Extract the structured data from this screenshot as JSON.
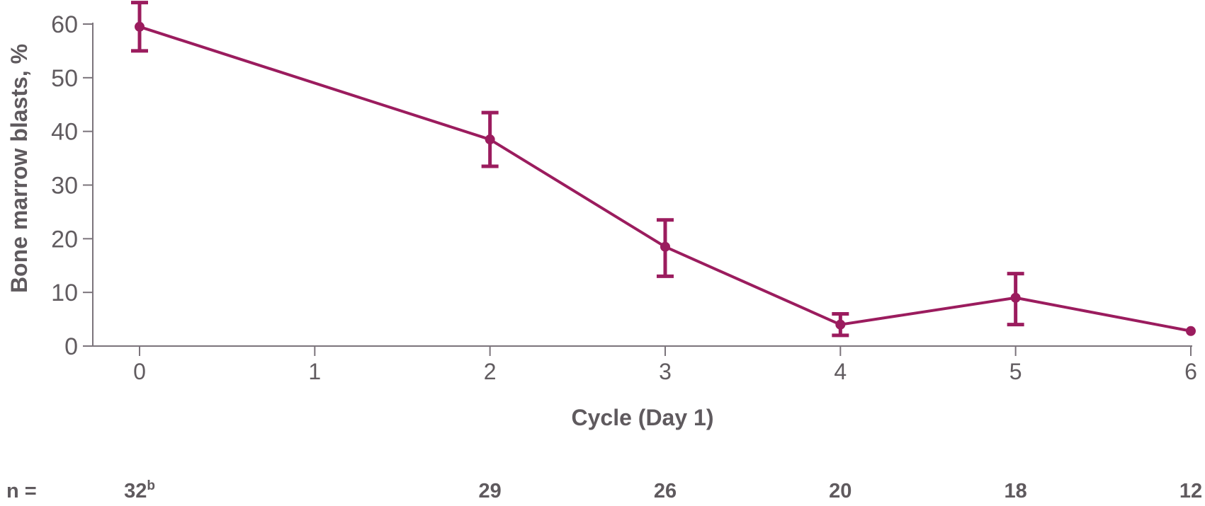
{
  "figure": {
    "background": "#ffffff"
  },
  "chart_data": {
    "type": "line",
    "title": "",
    "xlabel": "Cycle (Day 1)",
    "ylabel": "Bone marrow blasts, %",
    "x_ticks": [
      0,
      1,
      2,
      3,
      4,
      5,
      6
    ],
    "y_ticks": [
      0,
      10,
      20,
      30,
      40,
      50,
      60
    ],
    "xlim": [
      0,
      6
    ],
    "ylim": [
      0,
      60
    ],
    "grid": false,
    "legend": false,
    "colors": {
      "series": "#9b1c5e",
      "axis": "#7b747b",
      "text": "#5f5a5e"
    },
    "series": [
      {
        "name": "Bone marrow blasts, %",
        "color": "#9b1c5e",
        "x": [
          0,
          2,
          3,
          4,
          5,
          6
        ],
        "y": [
          59.5,
          38.5,
          18.5,
          4,
          9,
          2.8
        ],
        "y_upper": [
          64,
          43.5,
          23.5,
          6,
          13.5,
          null
        ],
        "y_lower": [
          55,
          33.5,
          13,
          2,
          4,
          null
        ]
      }
    ],
    "n_row": {
      "label": "n =",
      "values": [
        {
          "text": "32",
          "sup": "b",
          "x": 0
        },
        {
          "text": "29",
          "x": 2
        },
        {
          "text": "26",
          "x": 3
        },
        {
          "text": "20",
          "x": 4
        },
        {
          "text": "18",
          "x": 5
        },
        {
          "text": "12",
          "x": 6
        }
      ]
    }
  }
}
